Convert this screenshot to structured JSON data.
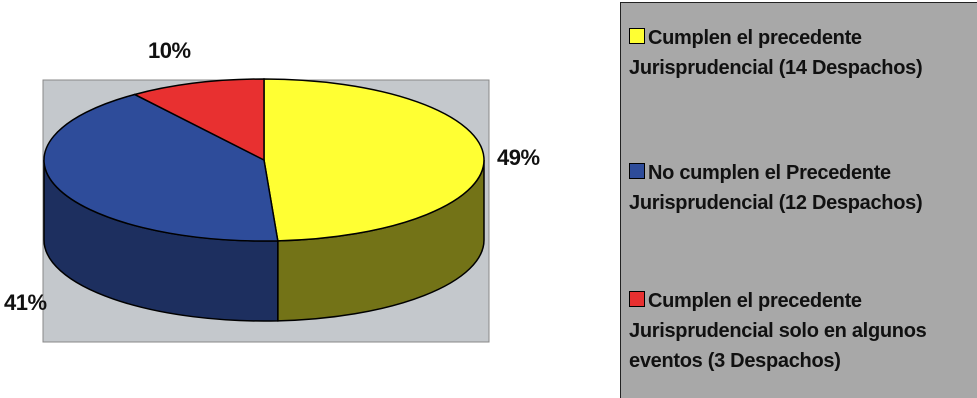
{
  "chart_data": {
    "type": "pie",
    "style": "3d",
    "slices": [
      {
        "label": "Cumplen el precedente Jurisprudencial (14 Despachos)",
        "legend_lines": [
          "Cumplen el precedente",
          "Jurisprudencial (14 Despachos)"
        ],
        "value": 49,
        "display": "49%",
        "color": "#ffff33"
      },
      {
        "label": "No cumplen el Precedente Jurisprudencial (12 Despachos)",
        "legend_lines": [
          "No cumplen el Precedente",
          "Jurisprudencial (12 Despachos)"
        ],
        "value": 41,
        "display": "41%",
        "color": "#2e4c9a"
      },
      {
        "label": "Cumplen el precedente Jurisprudencial solo en algunos eventos (3 Despachos)",
        "legend_lines": [
          "Cumplen el precedente",
          "Jurisprudencial solo en algunos",
          "eventos (3 Despachos)"
        ],
        "value": 10,
        "display": "10%",
        "color": "#e83030"
      }
    ],
    "plot_background": "#c4c8cc",
    "legend_background": "#a8a8a8",
    "legend_position": "right"
  }
}
